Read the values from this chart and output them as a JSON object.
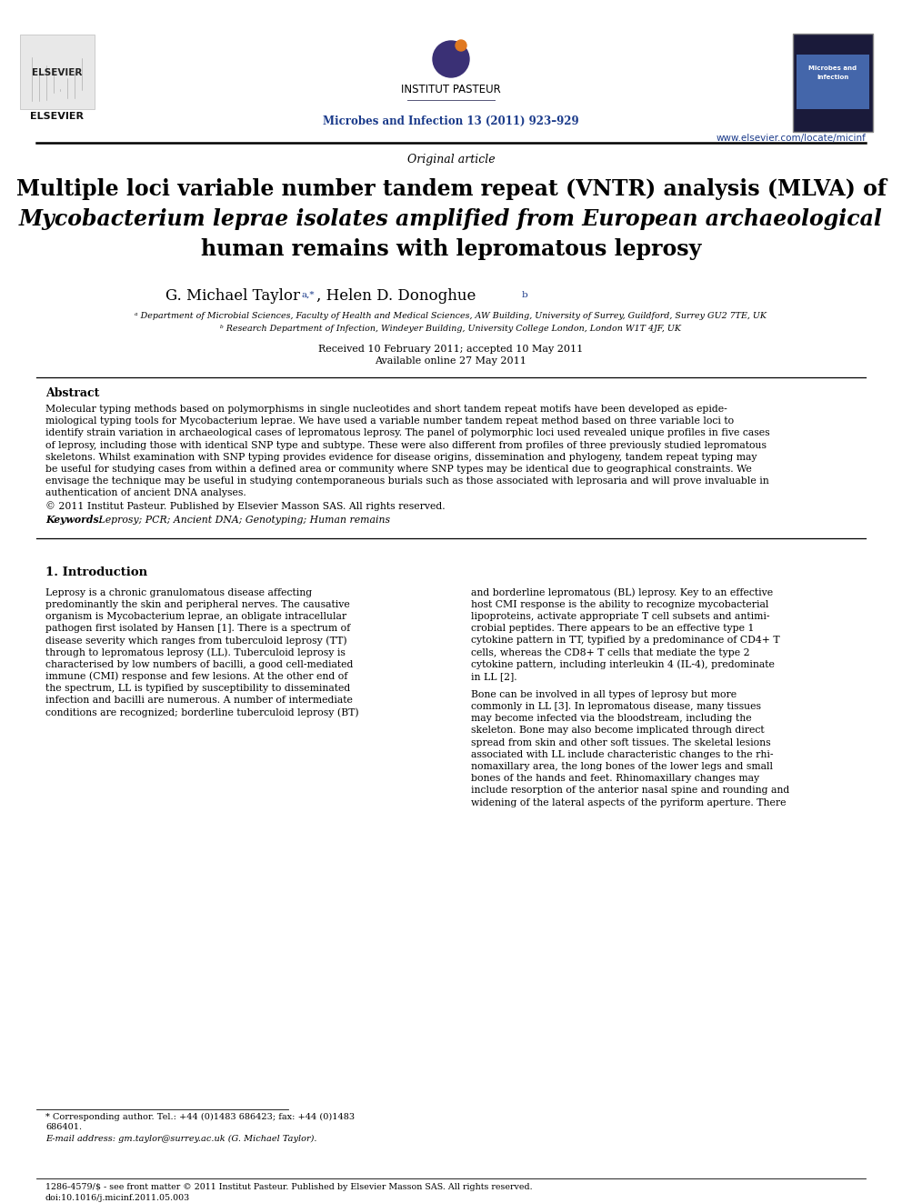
{
  "page_bg": "#ffffff",
  "header_line_color": "#000000",
  "journal_name_color": "#1a3a8a",
  "url_color": "#1a3a8a",
  "section_label": "Original article",
  "title_line1": "Multiple loci variable number tandem repeat (VNTR) analysis (MLVA) of",
  "title_line2_normal": " isolates amplified from European archaeological",
  "title_line2_italic": "Mycobacterium leprae",
  "title_line3": "human remains with lepromatous leprosy",
  "authors": "G. Michael Taylor",
  "authors_super": "a,*",
  "authors2": ", Helen D. Donoghue",
  "authors2_super": "b",
  "affil_a": "ᵃ Department of Microbial Sciences, Faculty of Health and Medical Sciences, AW Building, University of Surrey, Guildford, Surrey GU2 7TE, UK",
  "affil_b": "ᵇ Research Department of Infection, Windeyer Building, University College London, London W1T 4JF, UK",
  "received": "Received 10 February 2011; accepted 10 May 2011",
  "available": "Available online 27 May 2011",
  "abstract_title": "Abstract",
  "abstract_text": "Molecular typing methods based on polymorphisms in single nucleotides and short tandem repeat motifs have been developed as epide-\nmiological typing tools for Mycobacterium leprae. We have used a variable number tandem repeat method based on three variable loci to\nidentify strain variation in archaeological cases of lepromatous leprosy. The panel of polymorphic loci used revealed unique profiles in five cases\nof leprosy, including those with identical SNP type and subtype. These were also different from profiles of three previously studied lepromatous\nskeletons. Whilst examination with SNP typing provides evidence for disease origins, dissemination and phylogeny, tandem repeat typing may\nbe useful for studying cases from within a defined area or community where SNP types may be identical due to geographical constraints. We\nenvisage the technique may be useful in studying contemporaneous burials such as those associated with leprosaria and will prove invaluable in\nauthentication of ancient DNA analyses.",
  "copyright": "© 2011 Institut Pasteur. Published by Elsevier Masson SAS. All rights reserved.",
  "keywords_label": "Keywords:",
  "keywords": " Leprosy; PCR; Ancient DNA; Genotyping; Human remains",
  "intro_title": "1. Introduction",
  "intro_col1_text": "Leprosy is a chronic granulomatous disease affecting\npredominantly the skin and peripheral nerves. The causative\norganism is Mycobacterium leprae, an obligate intracellular\npathogen first isolated by Hansen [1]. There is a spectrum of\ndisease severity which ranges from tuberculoid leprosy (TT)\nthrough to lepromatous leprosy (LL). Tuberculoid leprosy is\ncharacterised by low numbers of bacilli, a good cell-mediated\nimmune (CMI) response and few lesions. At the other end of\nthe spectrum, LL is typified by susceptibility to disseminated\ninfection and bacilli are numerous. A number of intermediate\nconditions are recognized; borderline tuberculoid leprosy (BT)",
  "intro_col2_text": "and borderline lepromatous (BL) leprosy. Key to an effective\nhost CMI response is the ability to recognize mycobacterial\nlipoproteins, activate appropriate T cell subsets and antimi-\ncrobial peptides. There appears to be an effective type 1\ncytokine pattern in TT, typified by a predominance of CD4+ T\ncells, whereas the CD8+ T cells that mediate the type 2\ncytokine pattern, including interleukin 4 (IL-4), predominate\nin LL [2].\n\nBone can be involved in all types of leprosy but more\ncommonly in LL [3]. In lepromatous disease, many tissues\nmay become infected via the bloodstream, including the\nskeleton. Bone may also become implicated through direct\nspread from skin and other soft tissues. The skeletal lesions\nassociated with LL include characteristic changes to the rhi-\nnomaxillary area, the long bones of the lower legs and small\nbones of the hands and feet. Rhinomaxillary changes may\ninclude resorption of the anterior nasal spine and rounding and\nwidening of the lateral aspects of the pyriform aperture. There",
  "footnote_star": "* Corresponding author. Tel.: +44 (0)1483 686423; fax: +44 (0)1483",
  "footnote_star2": "686401.",
  "footnote_email": "E-mail address: gm.taylor@surrey.ac.uk (G. Michael Taylor).",
  "bottom_text": "1286-4579/$ - see front matter © 2011 Institut Pasteur. Published by Elsevier Masson SAS. All rights reserved.",
  "bottom_text2": "doi:10.1016/j.micinf.2011.05.003",
  "elsevier_text": "ELSEVIER",
  "institut_pasteur_text": "INSTITUT PASTEUR",
  "journal_citation": "Microbes and Infection 13 (2011) 923–929",
  "url_text": "www.elsevier.com/locate/micinf"
}
